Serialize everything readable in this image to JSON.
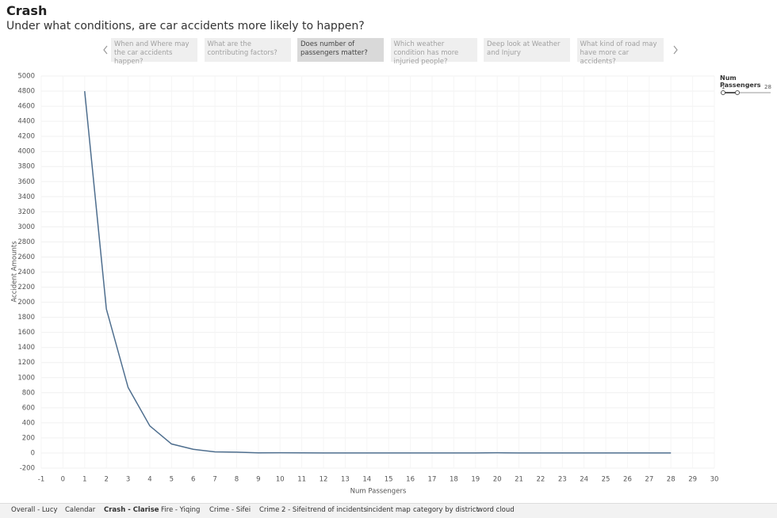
{
  "header": {
    "title": "Crash",
    "subtitle": "Under what conditions, are car accidents more likely to happen?"
  },
  "story_points": [
    "When and Where may the car accidents happen?",
    "What are the contributing factors?",
    "Does number of passengers matter?",
    "Which weather condition has more injuried people?",
    "Deep look at Weather and Injury",
    "What kind of road may have more car accidents?"
  ],
  "active_story_point": 2,
  "filter": {
    "title": "Num Passengers",
    "min": 1,
    "max": 28
  },
  "tabs": [
    "Overall - Lucy",
    "Calendar",
    "Crash - Clarise",
    "Fire - Yiqing",
    "Crime - Sifei",
    "Crime 2 - Sifei",
    "trend of incidents",
    "incident map",
    "category by district",
    "word cloud"
  ],
  "active_tab": 2,
  "chart_data": {
    "type": "line",
    "x_label": "Num Passengers",
    "y_label": "Accident Amounts",
    "x": [
      1,
      2,
      3,
      4,
      5,
      6,
      7,
      8,
      9,
      10,
      11,
      12,
      13,
      14,
      15,
      16,
      17,
      18,
      19,
      20,
      21,
      22,
      23,
      24,
      25,
      26,
      27,
      28
    ],
    "values": [
      4800,
      1910,
      870,
      360,
      120,
      50,
      15,
      12,
      2,
      3,
      2,
      1,
      1,
      1,
      1,
      1,
      1,
      1,
      1,
      3,
      1,
      1,
      1,
      1,
      1,
      1,
      1,
      1
    ],
    "color": "#4e6e8e",
    "xlim": [
      -1,
      30
    ],
    "xticks": [
      -1,
      0,
      1,
      2,
      3,
      4,
      5,
      6,
      7,
      8,
      9,
      10,
      11,
      12,
      13,
      14,
      15,
      16,
      17,
      18,
      19,
      20,
      21,
      22,
      23,
      24,
      25,
      26,
      27,
      28,
      29,
      30
    ],
    "ylim": [
      -200,
      5000
    ],
    "yticks": [
      -200,
      0,
      200,
      400,
      600,
      800,
      1000,
      1200,
      1400,
      1600,
      1800,
      2000,
      2200,
      2400,
      2600,
      2800,
      3000,
      3200,
      3400,
      3600,
      3800,
      4000,
      4200,
      4400,
      4600,
      4800,
      5000
    ],
    "grid": true
  }
}
